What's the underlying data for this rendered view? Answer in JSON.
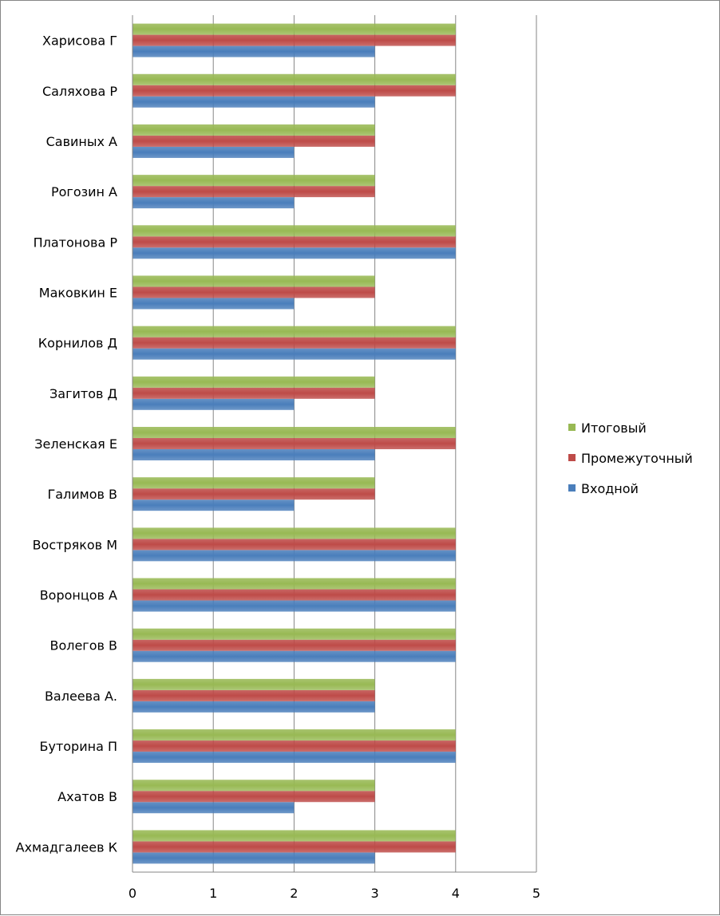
{
  "chart_data": {
    "type": "bar",
    "orientation": "horizontal",
    "categories": [
      "Ахмадгалеев К",
      "Ахатов В",
      "Буторина П",
      "Валеева А.",
      "Волегов В",
      "Воронцов А",
      "Востряков М",
      "Галимов В",
      "Зеленская Е",
      "Загитов Д",
      "Корнилов Д",
      "Маковкин Е",
      "Платонова Р",
      "Рогозин А",
      "Савиных А",
      "Саляхова Р",
      "Харисова Г"
    ],
    "series": [
      {
        "name": "Входной",
        "color": "#4a7ebb",
        "values": [
          3,
          2,
          4,
          3,
          4,
          4,
          4,
          2,
          3,
          2,
          4,
          2,
          4,
          2,
          2,
          3,
          3
        ]
      },
      {
        "name": "Промежуточный",
        "color": "#be4b48",
        "values": [
          4,
          3,
          4,
          3,
          4,
          4,
          4,
          3,
          4,
          3,
          4,
          3,
          4,
          3,
          3,
          4,
          4
        ]
      },
      {
        "name": "Итоговый",
        "color": "#98b954",
        "values": [
          4,
          3,
          4,
          3,
          4,
          4,
          4,
          3,
          4,
          3,
          4,
          3,
          4,
          3,
          3,
          4,
          4
        ]
      }
    ],
    "xticks": [
      "0",
      "1",
      "2",
      "3",
      "4",
      "5"
    ],
    "xlim": [
      0,
      5
    ],
    "grid": true,
    "legend_position": "right"
  }
}
